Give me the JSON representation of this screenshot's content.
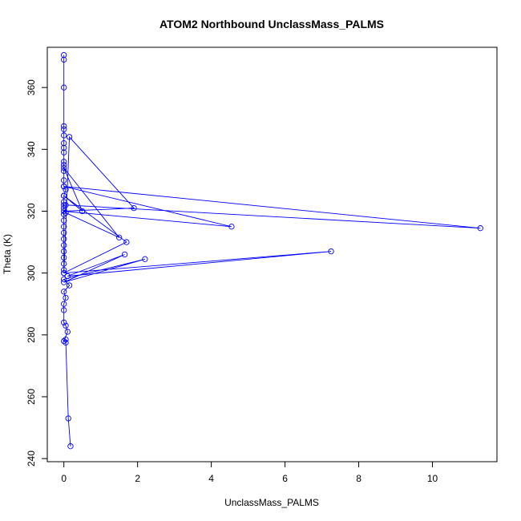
{
  "chart_data": {
    "type": "line",
    "title": "ATOM2 Northbound UnclassMass_PALMS",
    "xlabel": "UnclassMass_PALMS",
    "ylabel": "Theta (K)",
    "xlim": [
      -0.45,
      11.75
    ],
    "ylim": [
      239,
      373
    ],
    "xticks": [
      0,
      2,
      4,
      6,
      8,
      10
    ],
    "yticks": [
      240,
      260,
      280,
      300,
      320,
      340,
      360
    ],
    "grid": false,
    "line_color": "#0000ff",
    "marker": "open-circle",
    "series": [
      {
        "x": [
          0.0,
          0.0,
          0.0,
          0.0,
          0.0,
          0.0,
          0.0,
          0.0,
          0.0,
          0.0,
          0.0,
          0.0,
          0.0,
          0.0,
          0.05,
          0.0,
          0.0,
          0.0,
          0.0,
          0.0,
          0.0,
          0.0,
          0.0,
          0.0,
          0.0,
          0.0,
          0.0,
          0.0,
          0.0,
          0.0,
          0.15,
          1.9,
          0.0,
          4.55,
          0.0,
          11.3,
          0.05,
          0.05,
          1.5,
          0.0,
          0.5,
          0.0,
          1.7,
          0.0,
          7.25,
          0.1,
          1.65,
          0.0,
          2.2,
          0.0,
          0.15,
          0.0,
          0.05,
          0.0,
          0.0,
          0.0,
          0.05,
          0.1,
          0.0,
          0.05,
          0.05,
          0.12,
          0.18
        ],
        "y": [
          370.5,
          369.0,
          360.0,
          347.5,
          346.5,
          344.5,
          342.0,
          340.5,
          339.0,
          336.0,
          335.0,
          333.0,
          330.0,
          328.0,
          327.0,
          325.0,
          323.0,
          322.0,
          321.0,
          319.0,
          317.0,
          315.0,
          313.0,
          311.0,
          309.0,
          307.0,
          305.0,
          303.0,
          301.0,
          300.0,
          344.0,
          321.0,
          320.0,
          315.0,
          328.0,
          314.5,
          322.0,
          319.5,
          311.5,
          334.0,
          320.0,
          325.0,
          310.0,
          300.0,
          307.0,
          299.0,
          306.0,
          297.0,
          304.5,
          298.0,
          296.0,
          294.0,
          292.0,
          290.0,
          288.0,
          284.0,
          283.0,
          281.0,
          278.0,
          277.5,
          278.5,
          253.0,
          244.0
        ]
      }
    ]
  }
}
